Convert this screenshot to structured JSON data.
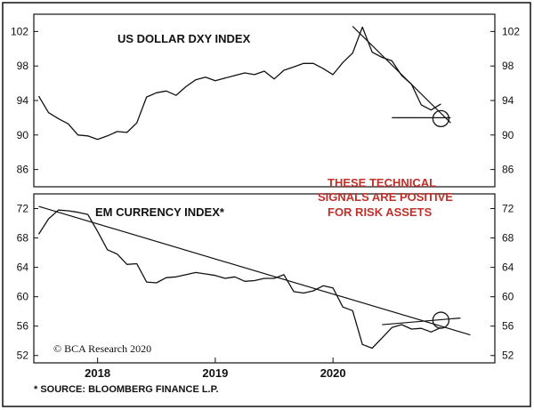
{
  "chart_data": [
    {
      "type": "line",
      "title": "US DOLLAR DXY INDEX",
      "ylim": [
        84,
        104
      ],
      "yticks": [
        86,
        90,
        94,
        98,
        102
      ],
      "x": [
        "2017-07",
        "2017-08",
        "2017-09",
        "2017-10",
        "2017-11",
        "2017-12",
        "2018-01",
        "2018-02",
        "2018-03",
        "2018-04",
        "2018-05",
        "2018-06",
        "2018-07",
        "2018-08",
        "2018-09",
        "2018-10",
        "2018-11",
        "2018-12",
        "2019-01",
        "2019-02",
        "2019-03",
        "2019-04",
        "2019-05",
        "2019-06",
        "2019-07",
        "2019-08",
        "2019-09",
        "2019-10",
        "2019-11",
        "2019-12",
        "2020-01",
        "2020-02",
        "2020-03",
        "2020-04",
        "2020-05",
        "2020-06",
        "2020-07",
        "2020-08",
        "2020-09",
        "2020-10",
        "2020-11",
        "2020-12"
      ],
      "series": [
        {
          "values": [
            94.5,
            92.6,
            91.9,
            91.3,
            90.0,
            89.9,
            89.5,
            89.9,
            90.4,
            90.3,
            91.4,
            94.4,
            94.9,
            95.1,
            94.6,
            95.6,
            96.4,
            96.7,
            96.3,
            96.6,
            96.9,
            97.2,
            97.0,
            97.4,
            96.5,
            97.5,
            97.9,
            98.3,
            98.3,
            97.7,
            97.0,
            98.4,
            99.5,
            102.5,
            99.6,
            99.0,
            98.6,
            96.9,
            95.9,
            93.5,
            92.9,
            93.6
          ]
        }
      ],
      "lines": [
        {
          "kind": "downtrend",
          "x": [
            "2020-03",
            "2021-01"
          ],
          "y": [
            102.6,
            91.4
          ]
        },
        {
          "kind": "support",
          "x": [
            "2020-07",
            "2021-01"
          ],
          "y": [
            92.0,
            92.0
          ]
        }
      ],
      "marker": {
        "shape": "circle",
        "x": "2020-12",
        "y": 91.9
      }
    },
    {
      "type": "line",
      "title": "EM CURRENCY INDEX*",
      "ylim": [
        51,
        74
      ],
      "yticks": [
        52,
        56,
        60,
        64,
        68,
        72
      ],
      "x": [
        "2017-07",
        "2017-08",
        "2017-09",
        "2017-10",
        "2017-11",
        "2017-12",
        "2018-01",
        "2018-02",
        "2018-03",
        "2018-04",
        "2018-05",
        "2018-06",
        "2018-07",
        "2018-08",
        "2018-09",
        "2018-10",
        "2018-11",
        "2018-12",
        "2019-01",
        "2019-02",
        "2019-03",
        "2019-04",
        "2019-05",
        "2019-06",
        "2019-07",
        "2019-08",
        "2019-09",
        "2019-10",
        "2019-11",
        "2019-12",
        "2020-01",
        "2020-02",
        "2020-03",
        "2020-04",
        "2020-05",
        "2020-06",
        "2020-07",
        "2020-08",
        "2020-09",
        "2020-10",
        "2020-11",
        "2020-12"
      ],
      "series": [
        {
          "values": [
            68.5,
            70.6,
            71.8,
            71.7,
            71.5,
            71.2,
            68.9,
            66.4,
            65.8,
            64.4,
            64.5,
            62.0,
            61.9,
            62.6,
            62.7,
            63.0,
            63.3,
            63.1,
            62.9,
            62.5,
            62.7,
            62.1,
            62.2,
            62.5,
            62.5,
            63.0,
            60.7,
            60.5,
            60.8,
            61.5,
            61.2,
            58.6,
            58.1,
            53.5,
            53.0,
            54.4,
            55.8,
            56.2,
            55.6,
            55.7,
            55.2,
            55.8
          ]
        }
      ],
      "lines": [
        {
          "kind": "downtrend",
          "x": [
            "2017-07",
            "2021-03"
          ],
          "y": [
            72.3,
            54.8
          ]
        },
        {
          "kind": "uptrend",
          "x": [
            "2020-06",
            "2021-02"
          ],
          "y": [
            56.2,
            57.1
          ]
        }
      ],
      "marker": {
        "shape": "circle",
        "x": "2020-12",
        "y": 56.8
      }
    }
  ],
  "x_axis": {
    "labels": [
      {
        "text": "2018",
        "x": "2018-01"
      },
      {
        "text": "2019",
        "x": "2019-01"
      },
      {
        "text": "2020",
        "x": "2020-01"
      }
    ],
    "range": [
      "2017-07",
      "2021-05"
    ]
  },
  "annotation_lines": [
    "THESE TECHNICAL",
    "SIGNALS ARE POSITIVE",
    "FOR RISK ASSETS"
  ],
  "credit": "© BCA Research 2020",
  "source": "* SOURCE: BLOOMBERG FINANCE L.P.",
  "colors": {
    "line": "#111111",
    "frame": "#111111",
    "annotation": "#c0312b",
    "background": "#ffffff"
  }
}
